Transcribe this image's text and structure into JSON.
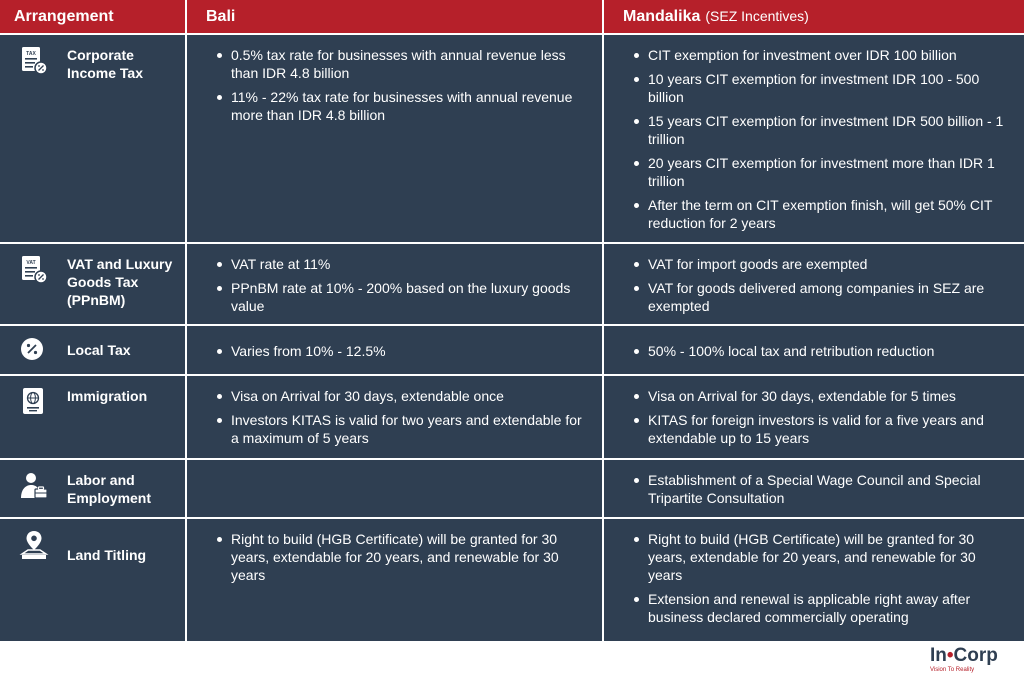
{
  "header": {
    "arrangement": "Arrangement",
    "bali": "Bali",
    "mandalika": "Mandalika",
    "mandalika_sub": "(SEZ Incentives)"
  },
  "rows": [
    {
      "category": "Corporate Income Tax",
      "icon": "tax-document-icon",
      "bali": [
        "0.5% tax rate for businesses with annual revenue less than IDR 4.8 billion",
        "11% - 22% tax rate for businesses with annual revenue more than IDR 4.8 billion"
      ],
      "mandalika": [
        "CIT exemption for investment over IDR 100 billion",
        "10 years CIT exemption for investment IDR 100 - 500 billion",
        "15 years CIT exemption for investment IDR 500 billion - 1 trillion",
        "20 years CIT exemption for investment more than IDR 1 trillion",
        "After the term on CIT exemption finish, will get 50% CIT reduction for 2 years"
      ]
    },
    {
      "category": "VAT and Luxury Goods Tax (PPnBM)",
      "icon": "vat-document-icon",
      "bali": [
        "VAT rate at 11%",
        "PPnBM rate at 10% - 200% based on the luxury goods value"
      ],
      "mandalika": [
        "VAT for import goods are exempted",
        "VAT for goods delivered among companies in SEZ are exempted"
      ]
    },
    {
      "category": "Local Tax",
      "icon": "percent-badge-icon",
      "bali": [
        "Varies from 10% - 12.5%"
      ],
      "mandalika": [
        "50% - 100% local tax and retribution reduction"
      ]
    },
    {
      "category": "Immigration",
      "icon": "passport-icon",
      "bali": [
        "Visa on Arrival for 30 days, extendable once",
        "Investors KITAS is valid for two years and extendable for a maximum of 5 years"
      ],
      "mandalika": [
        "Visa on Arrival for 30 days, extendable for 5 times",
        "KITAS for foreign investors is valid for a five years and extendable up to 15 years"
      ]
    },
    {
      "category": "Labor and Employment",
      "icon": "worker-briefcase-icon",
      "bali": [],
      "mandalika": [
        "Establishment of a Special Wage Council and Special Tripartite Consultation"
      ]
    },
    {
      "category": "Land Titling",
      "icon": "land-pin-icon",
      "bali": [
        "Right to build (HGB Certificate) will be granted for 30 years, extendable for 20 years, and renewable for 30 years"
      ],
      "mandalika": [
        "Right to build (HGB Certificate) will be granted for 30 years, extendable for 20 years, and renewable for 30 years",
        "Extension and renewal is applicable right away after business declared commercially operating"
      ]
    }
  ],
  "logo": {
    "text_a": "In",
    "text_dot": "•",
    "text_b": "Corp",
    "tagline": "Vision To Reality"
  },
  "colors": {
    "header_bg": "#b6202a",
    "table_bg": "#2f3f52",
    "text": "#ffffff"
  }
}
